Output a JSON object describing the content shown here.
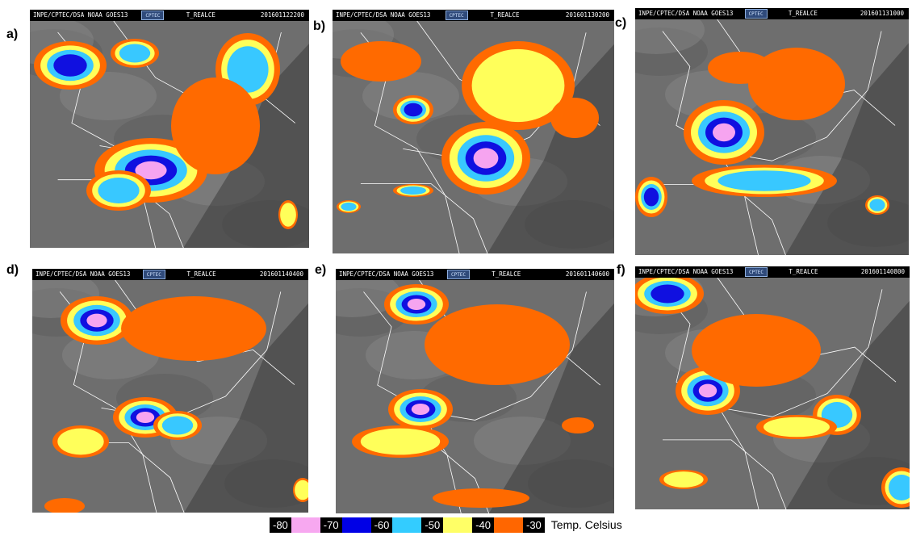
{
  "panels": [
    {
      "label": "a)",
      "source": "INPE/CPTEC/DSA  NOAA  GOES13",
      "logo": "CPTEC",
      "product": "T_REALCE",
      "timestamp": "201601122200"
    },
    {
      "label": "b)",
      "source": "INPE/CPTEC/DSA  NOAA  GOES13",
      "logo": "CPTEC",
      "product": "T_REALCE",
      "timestamp": "201601130200"
    },
    {
      "label": "c)",
      "source": "INPE/CPTEC/DSA  NOAA  GOES13",
      "logo": "CPTEC",
      "product": "T_REALCE",
      "timestamp": "201601131000"
    },
    {
      "label": "d)",
      "source": "INPE/CPTEC/DSA  NOAA  GOES13",
      "logo": "CPTEC",
      "product": "T_REALCE",
      "timestamp": "201601140400"
    },
    {
      "label": "e)",
      "source": "INPE/CPTEC/DSA  NOAA  GOES13",
      "logo": "CPTEC",
      "product": "T_REALCE",
      "timestamp": "201601140600"
    },
    {
      "label": "f)",
      "source": "INPE/CPTEC/DSA  NOAA  GOES13",
      "logo": "CPTEC",
      "product": "T_REALCE",
      "timestamp": "201601140800"
    }
  ],
  "legend": {
    "items": [
      {
        "value": "-80",
        "color": "#f7a8f0"
      },
      {
        "value": "-70",
        "color": "#0000e6"
      },
      {
        "value": "-60",
        "color": "#33ccff"
      },
      {
        "value": "-50",
        "color": "#ffff66"
      },
      {
        "value": "-40",
        "color": "#ff6600"
      },
      {
        "value": "-30",
        "color": ""
      }
    ],
    "unit": "Temp. Celsius"
  },
  "colors": {
    "orange": "#ff6a00",
    "yellow": "#ffff5a",
    "cyan": "#38c8ff",
    "blue": "#1010e0",
    "pink": "#f6a4f0",
    "background_gray": "#6e6e6e"
  }
}
